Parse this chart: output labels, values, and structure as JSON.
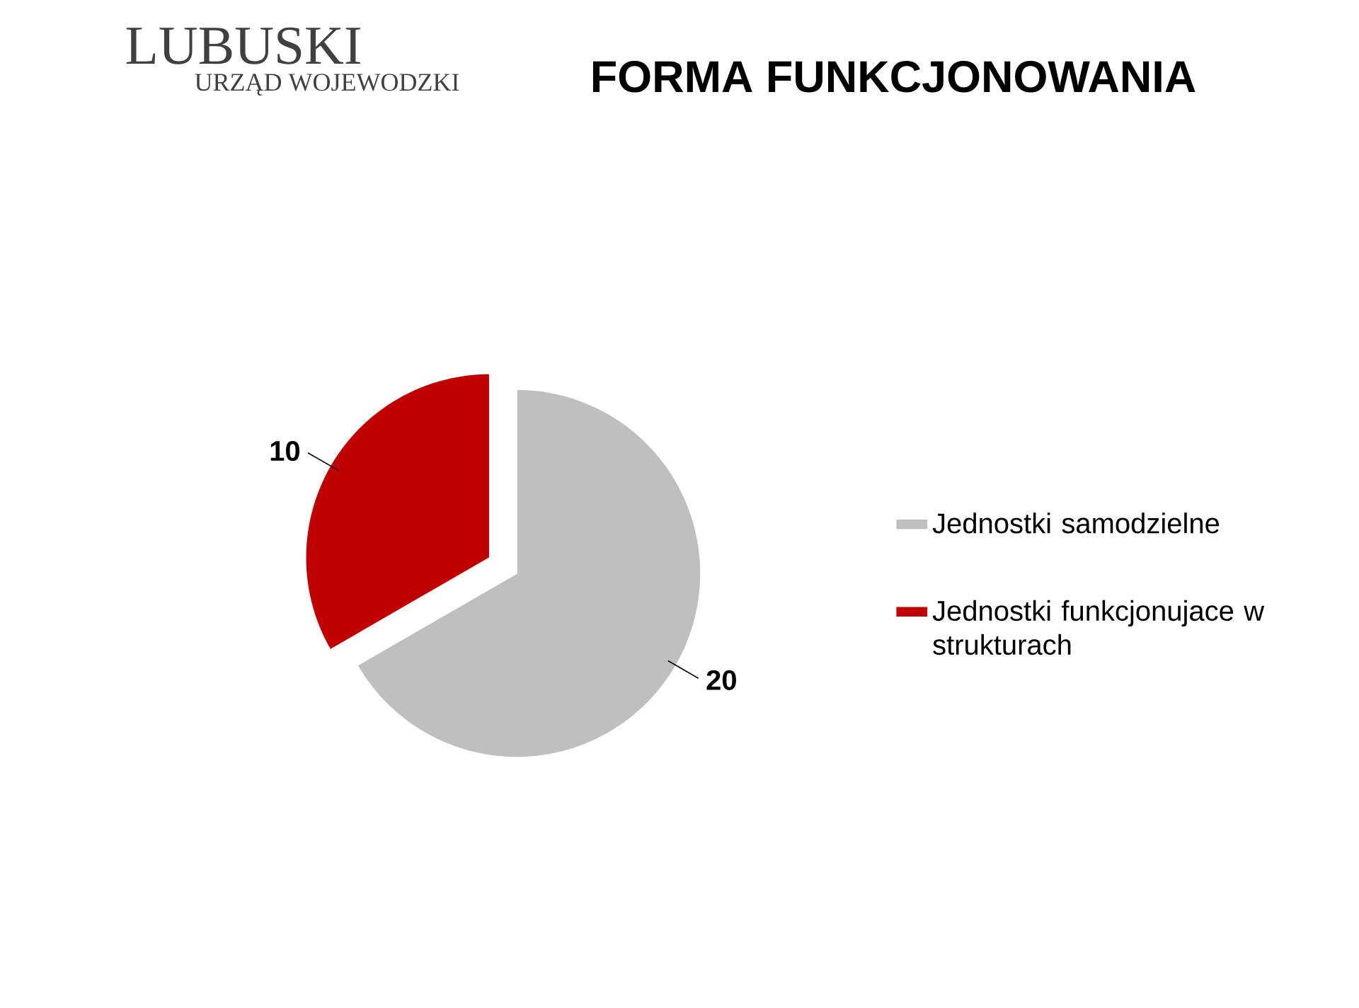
{
  "chart_data": {
    "type": "pie",
    "title": "FORMA FUNKCJONOWANIA",
    "categories": [
      "Jednostki samodzielne",
      "Jednostki funkcjonujace w strukturach"
    ],
    "values": [
      20,
      10
    ],
    "colors": [
      "#bfbfbf",
      "#c00000"
    ],
    "data_labels": true,
    "legend": "right",
    "annotations": [
      "LUBUSKI",
      "URZĄD WOJEWODZKI"
    ]
  }
}
